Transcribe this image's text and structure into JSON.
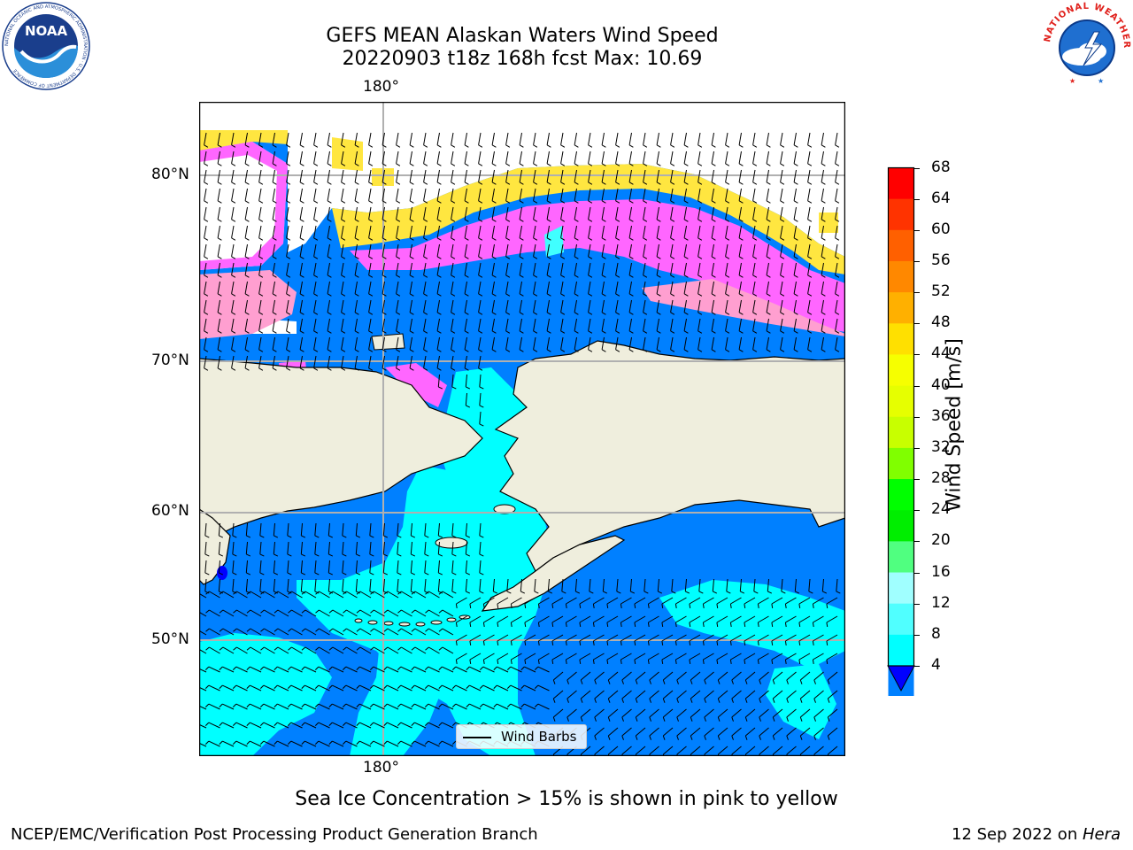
{
  "title": {
    "line1": "GEFS MEAN Alaskan Waters Wind Speed",
    "line2": "20220903 t18z 168h fcst   Max: 10.69"
  },
  "map": {
    "lon_label_top": "180°",
    "lon_label_bottom": "180°",
    "lat_labels": [
      "80°N",
      "70°N",
      "60°N",
      "50°N"
    ],
    "legend_label": "Wind Barbs",
    "colors": {
      "land": "#efeedd",
      "speed_4_8": "#0080ff",
      "speed_8_12": "#00ffff",
      "speed_12_16": "#40ffff",
      "ice_low": "#ff66ff",
      "ice_mid": "#ff9fd0",
      "ice_high": "#ffe640",
      "grid": "#b0b0b0"
    }
  },
  "colorbar": {
    "label": "Wind Speed [m/s]",
    "ticks": [
      "68",
      "64",
      "60",
      "56",
      "52",
      "48",
      "44",
      "40",
      "36",
      "32",
      "28",
      "24",
      "20",
      "16",
      "12",
      "8",
      "4"
    ],
    "colors": [
      "#ff0000",
      "#ff3300",
      "#ff6000",
      "#ff8800",
      "#ffb000",
      "#ffe000",
      "#f6ff00",
      "#e6ff00",
      "#c8ff00",
      "#80ff00",
      "#00ff00",
      "#00ee00",
      "#50ff80",
      "#a0ffff",
      "#50ffff",
      "#00ffff",
      "#0080ff"
    ],
    "under_color": "#0000ff"
  },
  "subtitle": "Sea Ice Concentration > 15% is shown in pink to yellow",
  "footer": {
    "left": "NCEP/EMC/Verification Post Processing Product Generation Branch",
    "right_date": "12 Sep 2022 on ",
    "right_host": "Hera"
  },
  "logos": {
    "noaa_text": "NOAA",
    "noaa_ring": "NATIONAL OCEANIC AND ATMOSPHERIC ADMINISTRATION · U.S. DEPARTMENT OF COMMERCE",
    "nws_ring": "NATIONAL WEATHER SERVICE"
  }
}
